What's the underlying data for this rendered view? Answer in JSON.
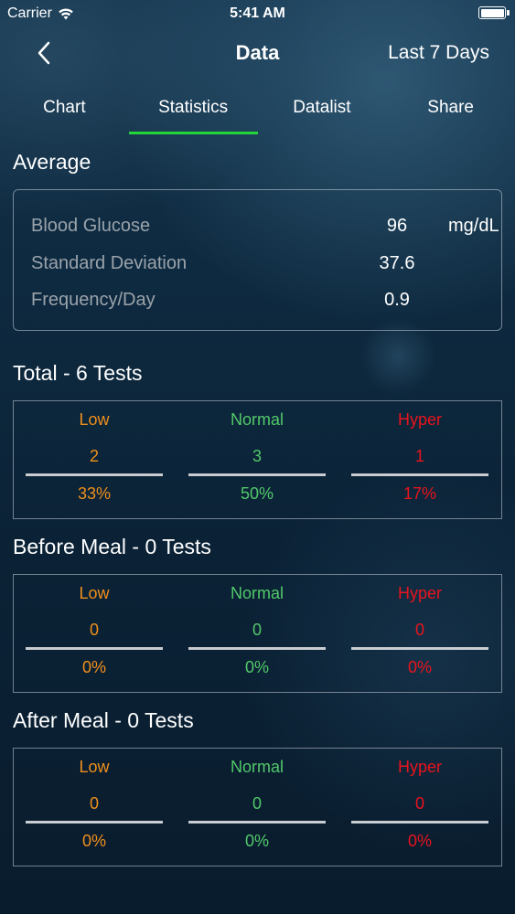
{
  "status_bar": {
    "carrier": "Carrier",
    "time": "5:41 AM"
  },
  "nav": {
    "title": "Data",
    "range": "Last 7 Days"
  },
  "tabs": [
    {
      "label": "Chart"
    },
    {
      "label": "Statistics",
      "active": true
    },
    {
      "label": "Datalist"
    },
    {
      "label": "Share"
    }
  ],
  "average": {
    "title": "Average",
    "rows": [
      {
        "label": "Blood Glucose",
        "value": "96",
        "unit": "mg/dL"
      },
      {
        "label": "Standard Deviation",
        "value": "37.6",
        "unit": ""
      },
      {
        "label": "Frequency/Day",
        "value": "0.9",
        "unit": ""
      }
    ]
  },
  "column_labels": {
    "low": "Low",
    "normal": "Normal",
    "hyper": "Hyper"
  },
  "colors": {
    "low": "#f0901c",
    "normal": "#52c96a",
    "hyper": "#e8141e",
    "tab_indicator": "#22d63a"
  },
  "groups": [
    {
      "title": "Total - 6 Tests",
      "low": {
        "count": "2",
        "percent": "33%"
      },
      "normal": {
        "count": "3",
        "percent": "50%"
      },
      "hyper": {
        "count": "1",
        "percent": "17%"
      }
    },
    {
      "title": "Before Meal - 0 Tests",
      "low": {
        "count": "0",
        "percent": "0%"
      },
      "normal": {
        "count": "0",
        "percent": "0%"
      },
      "hyper": {
        "count": "0",
        "percent": "0%"
      }
    },
    {
      "title": "After Meal - 0 Tests",
      "low": {
        "count": "0",
        "percent": "0%"
      },
      "normal": {
        "count": "0",
        "percent": "0%"
      },
      "hyper": {
        "count": "0",
        "percent": "0%"
      }
    }
  ]
}
